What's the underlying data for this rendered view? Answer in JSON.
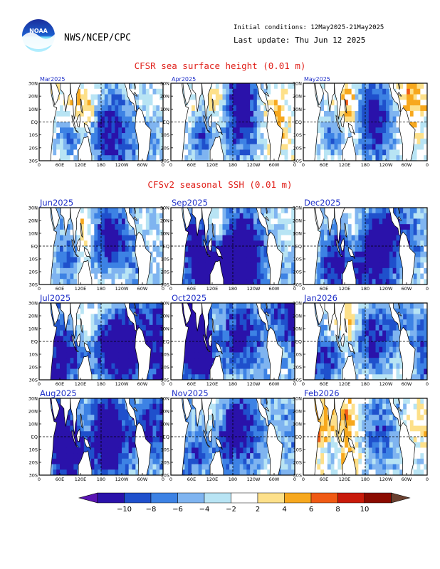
{
  "header": {
    "agency": "NWS/NCEP/CPC",
    "logo_text": "NOAA",
    "initial_conditions": "Initial conditions: 12May2025-21May2025",
    "last_update": "Last update: Thu Jun 12 2025"
  },
  "section_obs": {
    "title": "CFSR sea surface height (0.01 m)"
  },
  "section_fcst": {
    "title": "CFSv2 seasonal SSH (0.01 m)"
  },
  "axes": {
    "lat_labels": [
      "30N",
      "20N",
      "10N",
      "EQ",
      "10S",
      "20S",
      "30S"
    ],
    "lon_labels": [
      "0",
      "60E",
      "120E",
      "180",
      "120W",
      "60W",
      "0"
    ]
  },
  "obs_panels": [
    {
      "title": "Mar2025",
      "seed": 11,
      "warmth": 0.55,
      "west_warm": 0.9
    },
    {
      "title": "Apr2025",
      "seed": 23,
      "warmth": 0.5,
      "west_warm": 0.8
    },
    {
      "title": "May2025",
      "seed": 37,
      "warmth": 0.45,
      "west_warm": 0.7
    }
  ],
  "fcst_panels": [
    {
      "title": "Jun2025",
      "seed": 41,
      "warmth": 0.35,
      "west_warm": 1.0
    },
    {
      "title": "Sep2025",
      "seed": 53,
      "warmth": 0.3,
      "west_warm": 1.0
    },
    {
      "title": "Dec2025",
      "seed": 67,
      "warmth": 0.25,
      "west_warm": 1.0
    },
    {
      "title": "Jul2025",
      "seed": 71,
      "warmth": 0.3,
      "west_warm": 1.0
    },
    {
      "title": "Oct2025",
      "seed": 83,
      "warmth": 0.3,
      "west_warm": 1.0
    },
    {
      "title": "Jan2026",
      "seed": 97,
      "warmth": 0.2,
      "west_warm": 0.6
    },
    {
      "title": "Aug2025",
      "seed": 101,
      "warmth": 0.3,
      "west_warm": 1.0
    },
    {
      "title": "Nov2025",
      "seed": 113,
      "warmth": 0.3,
      "west_warm": 1.0
    },
    {
      "title": "Feb2026",
      "seed": 127,
      "warmth": 0.15,
      "west_warm": 0.4
    }
  ],
  "colorbar": {
    "ticks": [
      "-10",
      "-8",
      "-6",
      "-4",
      "-2",
      "2",
      "4",
      "6",
      "8",
      "10"
    ],
    "colors": [
      "#2a12aa",
      "#1f50cc",
      "#3d82e4",
      "#7fb4f0",
      "#b8e4f4",
      "#ffffff",
      "#fde08a",
      "#f7a81e",
      "#f05a14",
      "#c81a0a",
      "#8a0a00"
    ],
    "low_arrow_color": "#5a14b4",
    "high_arrow_color": "#6a4030"
  }
}
